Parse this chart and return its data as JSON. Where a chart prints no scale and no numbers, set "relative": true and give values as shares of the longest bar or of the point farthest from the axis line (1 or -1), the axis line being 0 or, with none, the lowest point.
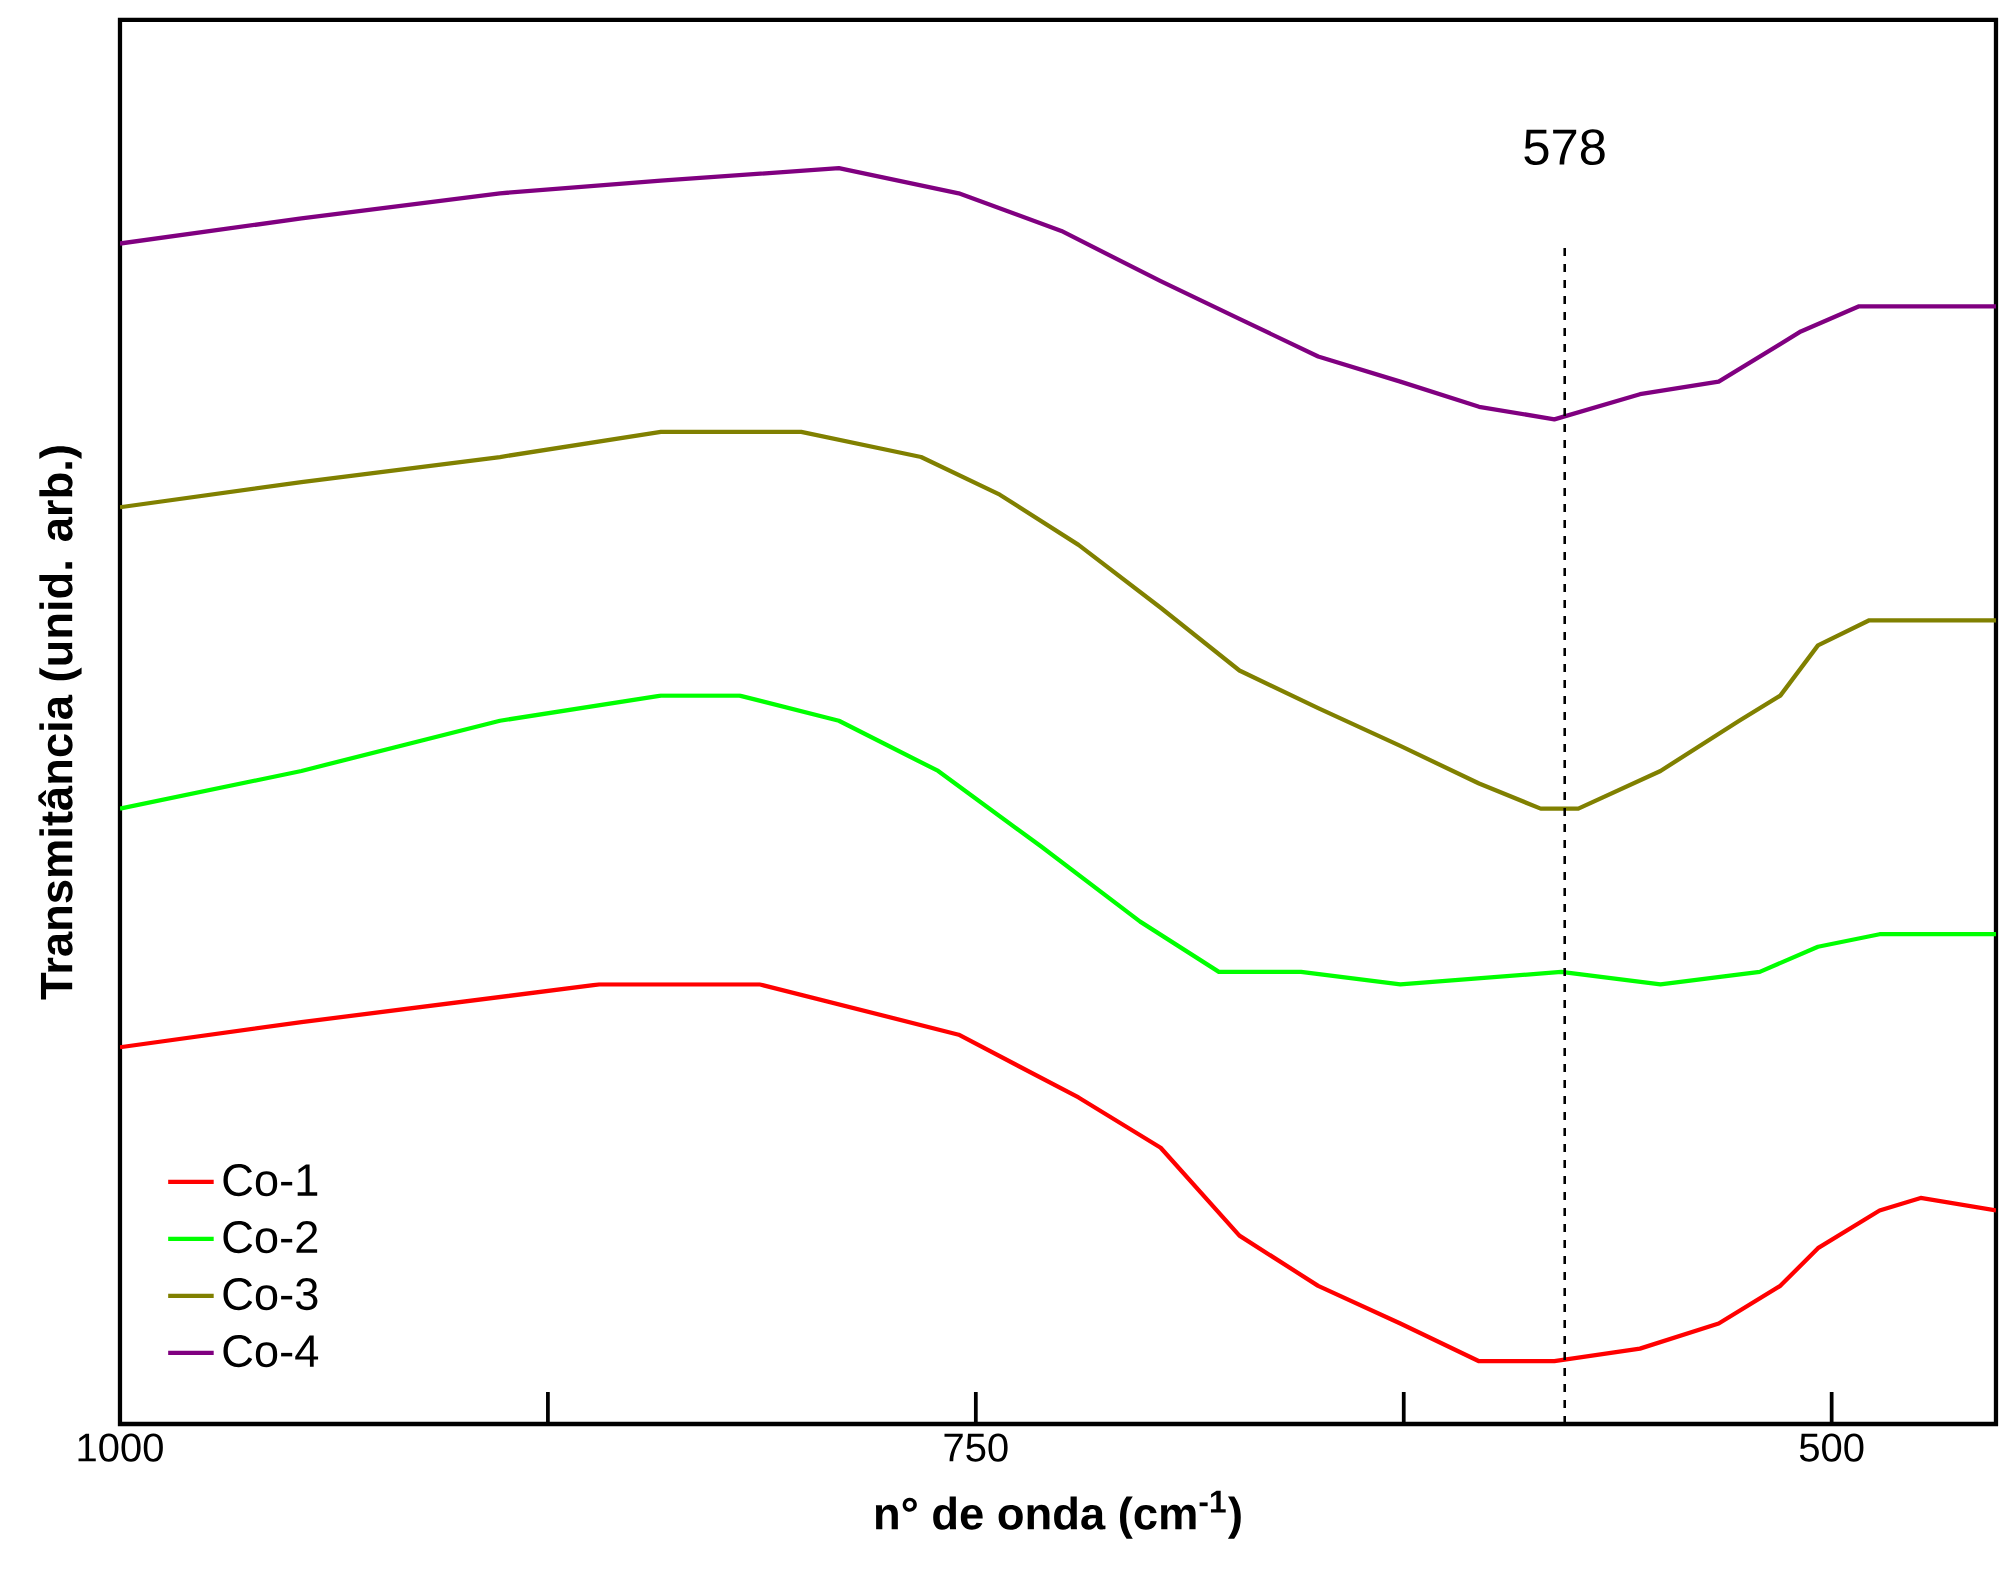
{
  "chart_data": {
    "type": "line",
    "relative": true,
    "xlabel": "**n° de onda (cm$^{-1}$)**",
    "ylabel": "**Transmitância (unid. arb.)**",
    "xlim": [
      1000,
      452
    ],
    "xticks": [
      1000,
      {
        "value": 875,
        "label": null
      },
      750,
      {
        "value": 625,
        "label": null
      },
      500
    ],
    "grid": false,
    "legend": "bottom left",
    "marker": "none",
    "line_style": "solid",
    "ref_lines": [
      {
        "axis": "x",
        "value": 578,
        "label": "578",
        "line_style": "dashed",
        "color": "#000000"
      }
    ],
    "series": [
      {
        "name": "Co-1",
        "color": "#ff0000",
        "x": [
          1000,
          947,
          889,
          860,
          813,
          784,
          755,
          720,
          696,
          673,
          650,
          626,
          603,
          581,
          556,
          533,
          515,
          504,
          486,
          474,
          452
        ],
        "values": [
          0.3,
          0.32,
          0.34,
          0.35,
          0.35,
          0.33,
          0.31,
          0.26,
          0.22,
          0.15,
          0.11,
          0.08,
          0.05,
          0.05,
          0.06,
          0.08,
          0.11,
          0.14,
          0.17,
          0.18,
          0.17
        ]
      },
      {
        "name": "Co-2",
        "color": "#00ff00",
        "x": [
          1000,
          947,
          889,
          842,
          819,
          790,
          761,
          731,
          702,
          679,
          655,
          626,
          579,
          550,
          521,
          504,
          486,
          468,
          452
        ],
        "values": [
          0.49,
          0.52,
          0.56,
          0.58,
          0.58,
          0.56,
          0.52,
          0.46,
          0.4,
          0.36,
          0.36,
          0.35,
          0.36,
          0.35,
          0.36,
          0.38,
          0.39,
          0.39,
          0.39
        ]
      },
      {
        "name": "Co-3",
        "color": "#808000",
        "x": [
          1000,
          947,
          889,
          842,
          801,
          766,
          743,
          720,
          696,
          673,
          650,
          626,
          603,
          585,
          574,
          550,
          527,
          515,
          504,
          489,
          474,
          452
        ],
        "values": [
          0.73,
          0.75,
          0.77,
          0.79,
          0.79,
          0.77,
          0.74,
          0.7,
          0.65,
          0.6,
          0.57,
          0.54,
          0.51,
          0.49,
          0.49,
          0.52,
          0.56,
          0.58,
          0.62,
          0.64,
          0.64,
          0.64
        ]
      },
      {
        "name": "Co-4",
        "color": "#800080",
        "x": [
          1000,
          947,
          889,
          842,
          790,
          755,
          725,
          696,
          673,
          650,
          626,
          603,
          581,
          556,
          533,
          521,
          509,
          492,
          474,
          452
        ],
        "values": [
          0.94,
          0.96,
          0.98,
          0.99,
          1.0,
          0.98,
          0.95,
          0.91,
          0.88,
          0.85,
          0.83,
          0.81,
          0.8,
          0.82,
          0.83,
          0.85,
          0.87,
          0.89,
          0.89,
          0.89
        ]
      }
    ]
  }
}
